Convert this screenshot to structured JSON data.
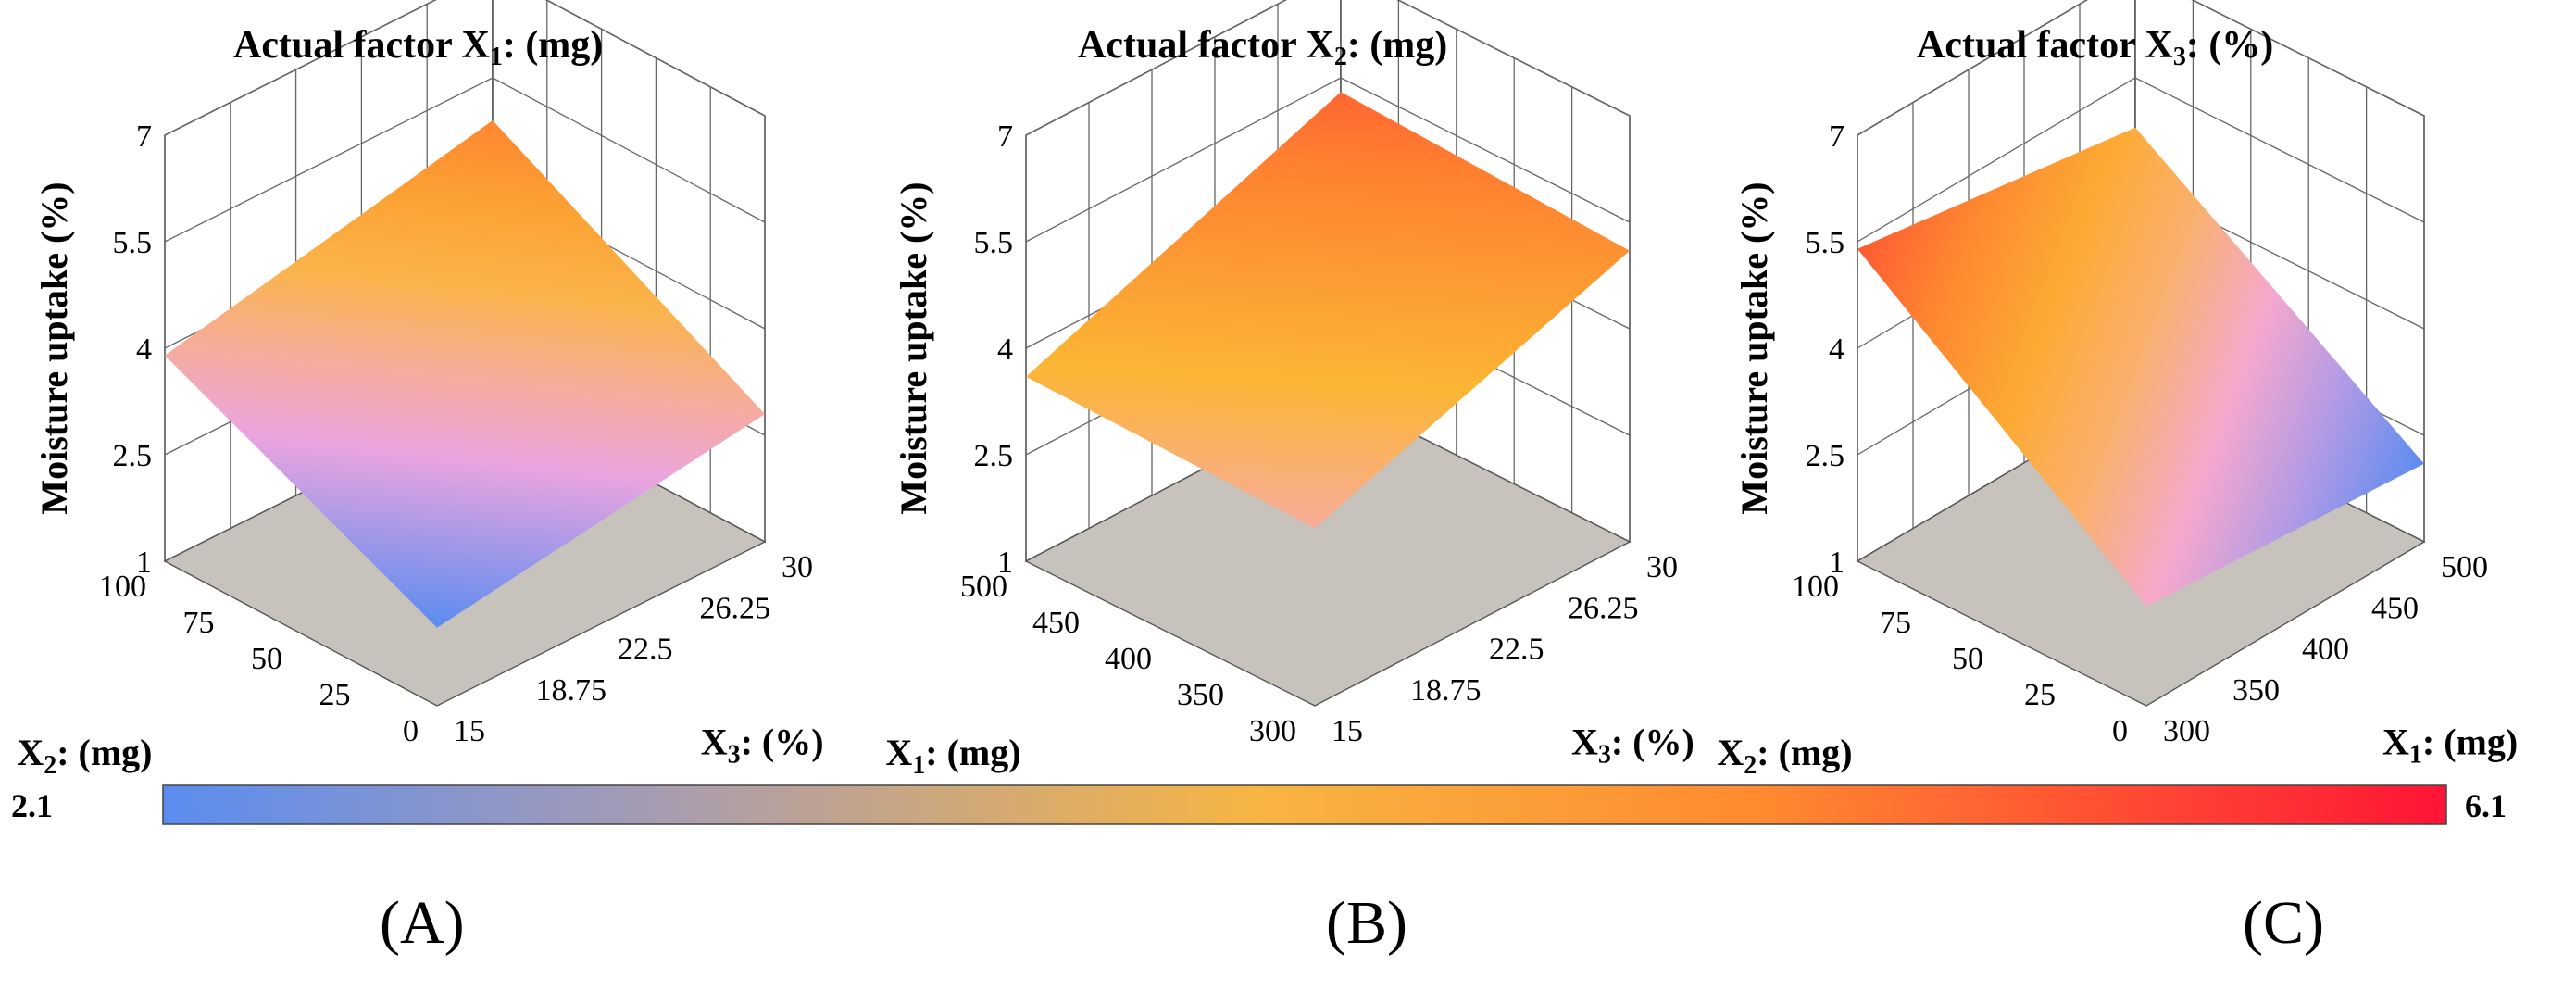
{
  "colors": {
    "low": "#5b8cf0",
    "mid_pink": "#f4a6de",
    "mid_orange": "#fbb634",
    "high": "#ff1436",
    "floor": "#c8c2bc",
    "grid": "#777777"
  },
  "chart_data": [
    {
      "type": "surface3d",
      "panel_label": "(A)",
      "title_prefix": "Actual factor X",
      "title_sub": "1",
      "title_suffix": ": (mg)",
      "zlabel": "Moisture uptake (%)",
      "z_ticks": [
        "1",
        "2.5",
        "4",
        "5.5",
        "7"
      ],
      "zlim": [
        1,
        7
      ],
      "left_axis": {
        "name": "X",
        "sub": "2",
        "unit": ": (mg)",
        "ticks": [
          "0",
          "25",
          "50",
          "75",
          "100"
        ],
        "range": [
          0,
          100
        ]
      },
      "right_axis": {
        "name": "X",
        "sub": "3",
        "unit": ": (%)",
        "ticks": [
          "15",
          "18.75",
          "22.5",
          "26.25",
          "30"
        ],
        "range": [
          15,
          30
        ]
      },
      "surface_corners": {
        "left_low_right_low": 2.1,
        "left_high_right_low": 3.9,
        "left_low_right_high": 2.8,
        "left_high_right_high": 4.9
      }
    },
    {
      "type": "surface3d",
      "panel_label": "(B)",
      "title_prefix": "Actual factor X",
      "title_sub": "2",
      "title_suffix": ": (mg)",
      "zlabel": "Moisture uptake (%)",
      "z_ticks": [
        "1",
        "2.5",
        "4",
        "5.5",
        "7"
      ],
      "zlim": [
        1,
        7
      ],
      "left_axis": {
        "name": "X",
        "sub": "1",
        "unit": ": (mg)",
        "ticks": [
          "300",
          "350",
          "400",
          "450",
          "500"
        ],
        "range": [
          300,
          500
        ]
      },
      "right_axis": {
        "name": "X",
        "sub": "3",
        "unit": ": (%)",
        "ticks": [
          "15",
          "18.75",
          "22.5",
          "26.25",
          "30"
        ],
        "range": [
          15,
          30
        ]
      },
      "surface_corners": {
        "left_low_right_low": 3.5,
        "left_high_right_low": 3.6,
        "left_low_right_high": 5.1,
        "left_high_right_high": 5.3
      }
    },
    {
      "type": "surface3d",
      "panel_label": "(C)",
      "title_prefix": "Actual factor X",
      "title_sub": "3",
      "title_suffix": ": (%)",
      "zlabel": "Moisture uptake (%)",
      "z_ticks": [
        "1",
        "2.5",
        "4",
        "5.5",
        "7"
      ],
      "zlim": [
        1,
        7
      ],
      "left_axis": {
        "name": "X",
        "sub": "2",
        "unit": ": (mg)",
        "ticks": [
          "0",
          "25",
          "50",
          "75",
          "100"
        ],
        "range": [
          0,
          100
        ]
      },
      "right_axis": {
        "name": "X",
        "sub": "1",
        "unit": ": (mg)",
        "ticks": [
          "300",
          "350",
          "400",
          "450",
          "500"
        ],
        "range": [
          300,
          500
        ]
      },
      "surface_corners": {
        "left_low_right_low": 2.4,
        "left_high_right_low": 5.4,
        "left_low_right_high": 2.1,
        "left_high_right_high": 4.8
      }
    }
  ],
  "colorbar": {
    "min_label": "2.1",
    "max_label": "6.1",
    "min": 2.1,
    "max": 6.1
  }
}
